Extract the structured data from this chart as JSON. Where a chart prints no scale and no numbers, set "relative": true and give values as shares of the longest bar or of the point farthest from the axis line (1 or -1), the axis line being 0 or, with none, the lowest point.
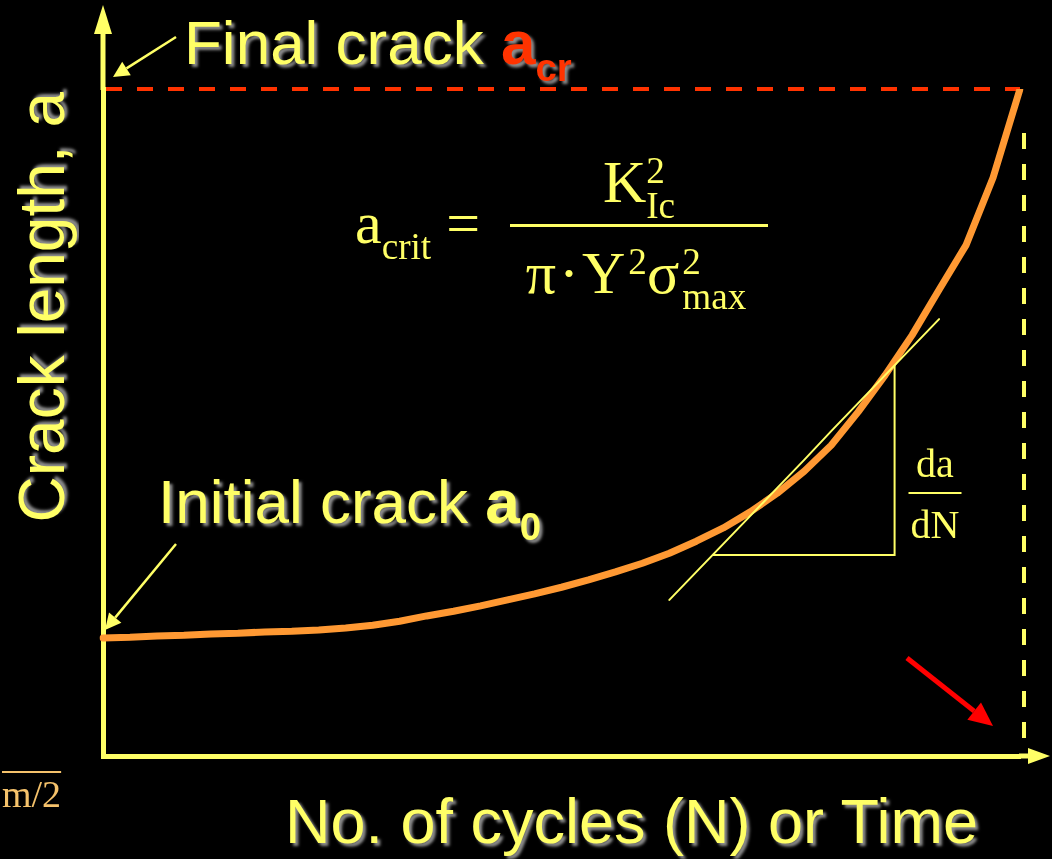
{
  "chart_data": {
    "type": "line",
    "xlabel": "No. of cycles (N) or Time",
    "ylabel": "Crack length, a",
    "relative": true,
    "categories": [
      null,
      null,
      null,
      null,
      null,
      null,
      null,
      null,
      null,
      null,
      null,
      null,
      null,
      null,
      null,
      null,
      null,
      null,
      null,
      null,
      null,
      null,
      null,
      null,
      null,
      null,
      null,
      null,
      null,
      null,
      null,
      null,
      null,
      null,
      null
    ],
    "series": [
      {
        "color": "#ff9933",
        "values": [
          0.177,
          0.178,
          0.18,
          0.181,
          0.183,
          0.184,
          0.186,
          0.187,
          0.189,
          0.192,
          0.196,
          0.202,
          0.21,
          0.217,
          0.225,
          0.234,
          0.243,
          0.253,
          0.264,
          0.276,
          0.289,
          0.304,
          0.322,
          0.342,
          0.366,
          0.394,
          0.427,
          0.466,
          0.516,
          0.571,
          0.631,
          0.699,
          0.766,
          0.867,
          1
        ]
      },
      {
        "type": "line",
        "color": "#ffff66",
        "values": [
          null,
          null,
          null,
          null,
          null,
          null,
          null,
          null,
          null,
          null,
          null,
          null,
          null,
          null,
          null,
          null,
          null,
          null,
          null,
          null,
          null,
          0.234,
          0.276,
          0.318,
          0.36,
          0.402,
          0.444,
          0.487,
          0.529,
          0.571,
          0.613,
          0.655,
          null,
          null,
          null
        ]
      }
    ],
    "ref_lines": [
      {
        "axis": "y",
        "value": 1,
        "label": "Final crack a$_{cr}$",
        "color": "#ff3300",
        "line_style": "dashed"
      }
    ],
    "annotations": [
      "Initial crack a$_{0}$",
      "a$_{crit}$ =",
      "K$_{Ic}$$^{2}$",
      "π·Y$^{2}$σ$_{max}$$^{2}$",
      "da",
      "dN",
      "m/2"
    ],
    "marker": "none"
  }
}
